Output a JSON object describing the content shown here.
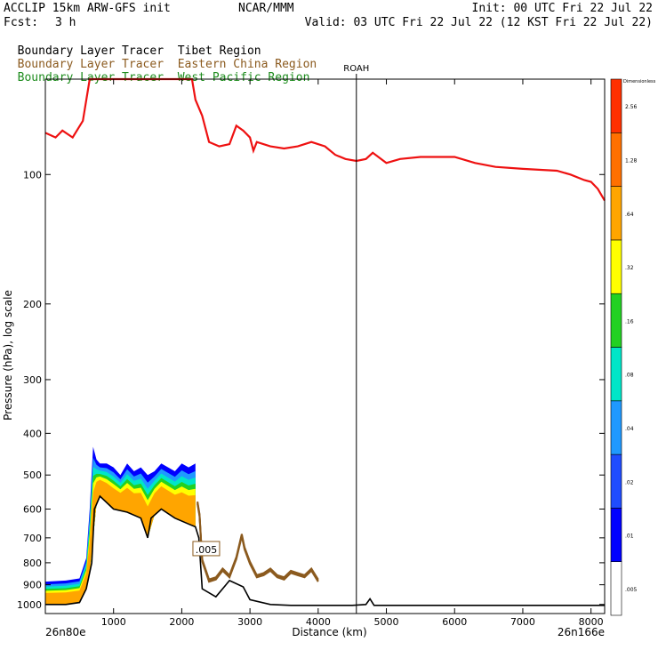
{
  "header": {
    "model": "ACCLIP 15km ARW-GFS init",
    "org": "NCAR/MMM",
    "init": "Init: 00 UTC Fri 22 Jul 22",
    "fcst_label": "Fcst:",
    "fcst_value": "3 h",
    "valid": "Valid: 03 UTC Fri 22 Jul 22 (12 KST Fri 22 Jul 22)",
    "lines": [
      {
        "prefix": "Boundary Layer Tracer",
        "region": "Tibet Region",
        "color": "#000000"
      },
      {
        "prefix": "Boundary Layer Tracer",
        "region": "Eastern China Region",
        "color": "#8B5A1E"
      },
      {
        "prefix": "Boundary Layer Tracer",
        "region": "West Pacific Region",
        "color": "#1E8C1E"
      }
    ]
  },
  "chart_data": {
    "type": "area",
    "xlabel": "Distance (km)",
    "ylabel": "Pressure (hPa), log scale",
    "xlim": [
      0,
      8200
    ],
    "ylim_hpa": [
      1050,
      60
    ],
    "y_scale": "log",
    "x_ticks": [
      1000,
      2000,
      3000,
      4000,
      5000,
      6000,
      7000,
      8000
    ],
    "y_ticks": [
      100,
      200,
      300,
      400,
      500,
      600,
      700,
      800,
      900,
      1000
    ],
    "start_label": "26n80e",
    "end_label": "26n166e",
    "marker": {
      "label": "ROAH",
      "x": 4560
    },
    "contour_label": ".005",
    "contour_label_at": {
      "x": 2320,
      "p": 745
    },
    "colorbar": {
      "header": "Dimensionless",
      "levels": [
        ".005",
        ".01",
        ".02",
        ".04",
        ".08",
        ".16",
        ".32",
        ".64",
        "1.28",
        "2.56"
      ],
      "colors": [
        "#ffffff",
        "#0000ff",
        "#1f4cff",
        "#1f99ff",
        "#00e6c8",
        "#22d122",
        "#ffff00",
        "#ffa500",
        "#ff7000",
        "#ff3000"
      ]
    },
    "series": [
      {
        "name": "Tibet Region",
        "role": "tropopause-line",
        "color": "#ee1111",
        "x": [
          0,
          150,
          250,
          400,
          550,
          650,
          700,
          2150,
          2200,
          2300,
          2400,
          2550,
          2700,
          2800,
          2900,
          3000,
          3050,
          3100,
          3300,
          3500,
          3700,
          3900,
          4100,
          4250,
          4400,
          4560,
          4700,
          4800,
          5000,
          5200,
          5500,
          6000,
          6300,
          6600,
          7000,
          7500,
          7700,
          7900,
          8000,
          8100,
          8200
        ],
        "p": [
          80,
          82,
          79,
          82,
          75,
          60,
          60,
          60,
          67,
          73,
          84,
          86,
          85,
          77,
          79,
          82,
          88,
          84,
          86,
          87,
          86,
          84,
          86,
          90,
          92,
          93,
          92,
          89,
          94,
          92,
          91,
          91,
          94,
          96,
          97,
          98,
          100,
          103,
          104,
          108,
          115
        ]
      },
      {
        "name": "Tibet Region",
        "role": "terrain",
        "color": "#000000",
        "x": [
          0,
          300,
          500,
          600,
          680,
          720,
          800,
          1000,
          1200,
          1400,
          1500,
          1550,
          1700,
          1900,
          2100,
          2200,
          2250,
          2300,
          2500,
          2700,
          2900,
          3000,
          3300,
          3600,
          4000,
          4500,
          4700,
          4760,
          4820,
          5000,
          6000,
          7000,
          8000,
          8200
        ],
        "p": [
          1000,
          1000,
          990,
          920,
          800,
          600,
          560,
          600,
          610,
          630,
          700,
          630,
          600,
          630,
          650,
          660,
          700,
          920,
          960,
          880,
          910,
          975,
          1000,
          1005,
          1005,
          1005,
          1000,
          970,
          1005,
          1005,
          1005,
          1005,
          1005,
          1005
        ]
      },
      {
        "name": "Eastern China Region",
        "role": "tracer-0.005-contour",
        "color": "#8B5A1E",
        "x": [
          2230,
          2260,
          2300,
          2400,
          2500,
          2600,
          2700,
          2800,
          2880,
          2920,
          3000,
          3100,
          3200,
          3300,
          3400,
          3500,
          3600,
          3700,
          3800,
          3900,
          4000
        ],
        "p": [
          580,
          620,
          790,
          880,
          870,
          830,
          860,
          780,
          690,
          740,
          800,
          860,
          850,
          830,
          860,
          870,
          840,
          850,
          860,
          830,
          880
        ]
      },
      {
        "name": "Tibet Region",
        "role": "tracer-top-0.01",
        "color": "#0000ff",
        "x": [
          0,
          300,
          500,
          600,
          650,
          700,
          750,
          800,
          900,
          1000,
          1100,
          1200,
          1300,
          1400,
          1500,
          1600,
          1700,
          1800,
          1900,
          2000,
          2100,
          2200
        ],
        "p": [
          885,
          880,
          870,
          780,
          600,
          430,
          460,
          470,
          470,
          480,
          500,
          470,
          490,
          480,
          500,
          490,
          470,
          480,
          490,
          470,
          480,
          470
        ]
      }
    ]
  }
}
